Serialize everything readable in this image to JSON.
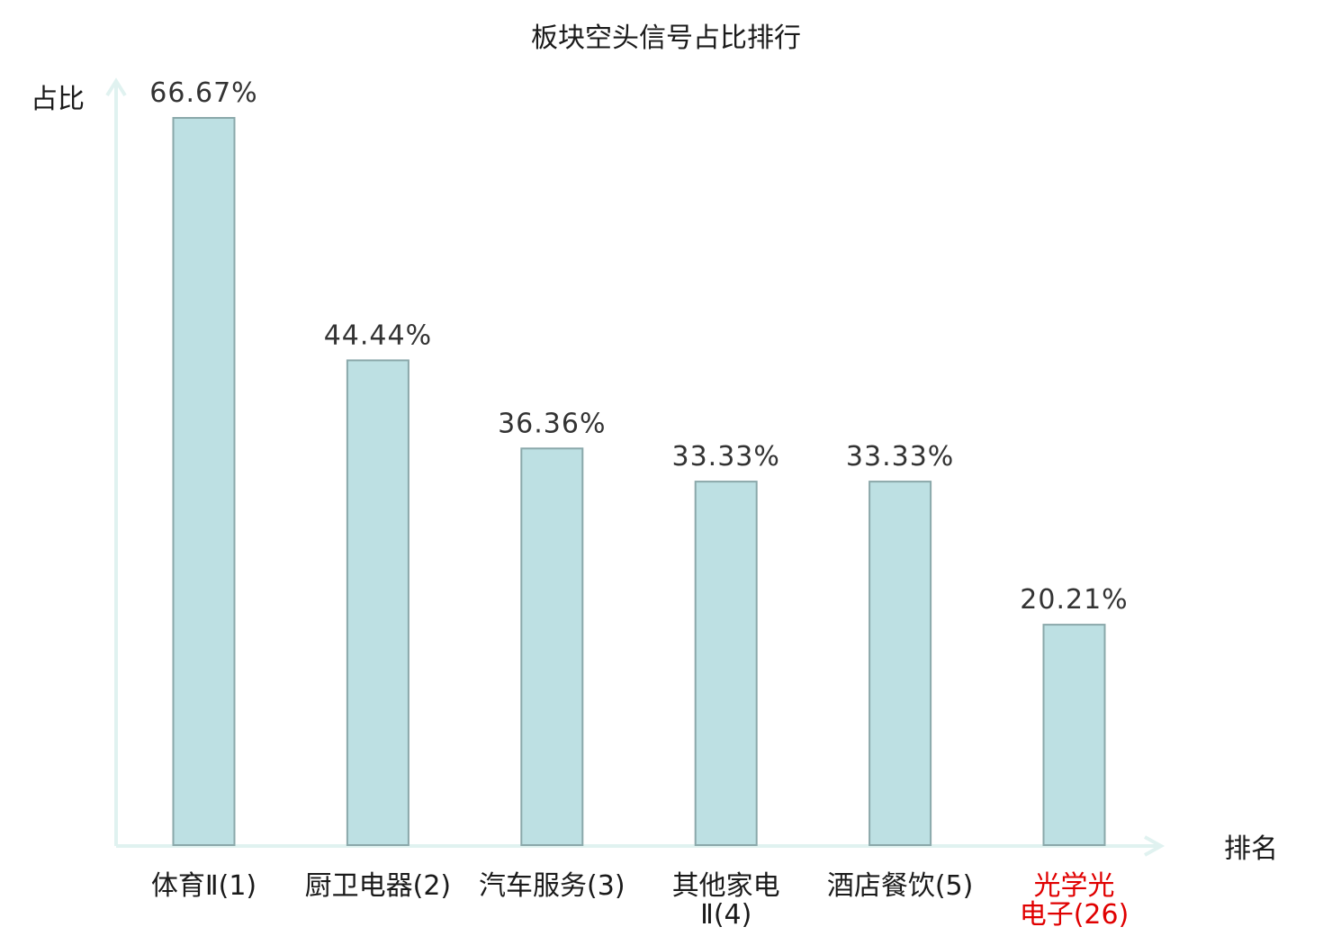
{
  "chart_data": {
    "type": "bar",
    "title": "板块空头信号占比排行",
    "ylabel": "占比",
    "xlabel": "排名",
    "categories": [
      "体育Ⅱ(1)",
      "厨卫电器(2)",
      "汽车服务(3)",
      "其他家电Ⅱ(4)",
      "酒店餐饮(5)",
      "光学光电子(26)"
    ],
    "category_lines": [
      [
        "体育Ⅱ(1)"
      ],
      [
        "厨卫电器(2)"
      ],
      [
        "汽车服务(3)"
      ],
      [
        "其他家电",
        "Ⅱ(4)"
      ],
      [
        "酒店餐饮(5)"
      ],
      [
        "光学光",
        "电子(26)"
      ]
    ],
    "values": [
      66.67,
      44.44,
      36.36,
      33.33,
      33.33,
      20.21
    ],
    "value_labels": [
      "66.67%",
      "44.44%",
      "36.36%",
      "33.33%",
      "33.33%",
      "20.21%"
    ],
    "highlight_index": 5,
    "ylim": [
      0,
      66.67
    ],
    "grid": false,
    "colors": {
      "bar_fill": "#bde0e3",
      "bar_stroke": "#8aa8aa",
      "axis": "#e0f2f0",
      "label": "#1a1a1a",
      "highlight": "#e00000"
    }
  }
}
